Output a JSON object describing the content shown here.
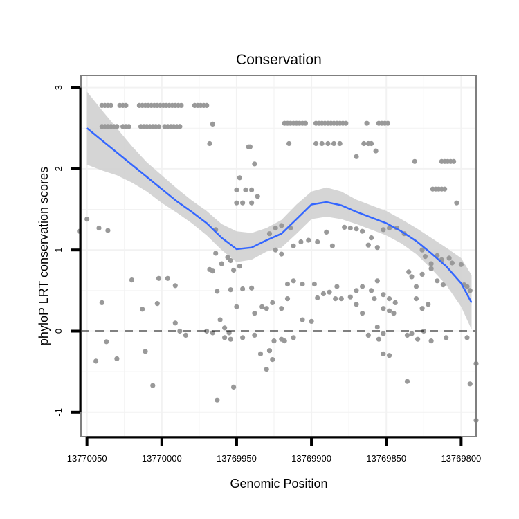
{
  "chart_data": {
    "type": "scatter",
    "title": "Conservation",
    "xlabel": "Genomic Position",
    "ylabel": "phyloP LRT conservation scores",
    "x_reversed": true,
    "xlim": [
      13770054,
      13769790
    ],
    "ylim": [
      -1.3,
      3.15
    ],
    "x_ticks": [
      13770050,
      13770000,
      13769950,
      13769900,
      13769850,
      13769800
    ],
    "x_tick_labels": [
      "13770050",
      "13770000",
      "13769950",
      "13769900",
      "13769850",
      "13769800"
    ],
    "y_ticks": [
      -1,
      0,
      1,
      2,
      3
    ],
    "y_tick_labels": [
      "-1",
      "0",
      "1",
      "2",
      "3"
    ],
    "grid": true,
    "reference_line": {
      "y": 0,
      "style": "dashed"
    },
    "colors": {
      "points": "#999999",
      "smooth": "#3366ff",
      "band": "#d0d0d0",
      "frame": "#7f7f7f",
      "grid": "#f2f2f2"
    },
    "points": [
      [
        13770040,
        2.78
      ],
      [
        13770038,
        2.78
      ],
      [
        13770036,
        2.78
      ],
      [
        13770034,
        2.78
      ],
      [
        13770028,
        2.78
      ],
      [
        13770026,
        2.78
      ],
      [
        13770024,
        2.78
      ],
      [
        13770015,
        2.78
      ],
      [
        13770013,
        2.78
      ],
      [
        13770011,
        2.78
      ],
      [
        13770009,
        2.78
      ],
      [
        13770007,
        2.78
      ],
      [
        13770005,
        2.78
      ],
      [
        13770003,
        2.78
      ],
      [
        13770001,
        2.78
      ],
      [
        13769999,
        2.78
      ],
      [
        13769997,
        2.78
      ],
      [
        13769995,
        2.78
      ],
      [
        13769993,
        2.78
      ],
      [
        13769991,
        2.78
      ],
      [
        13769989,
        2.78
      ],
      [
        13769987,
        2.78
      ],
      [
        13769978,
        2.78
      ],
      [
        13769976,
        2.78
      ],
      [
        13769974,
        2.78
      ],
      [
        13769972,
        2.78
      ],
      [
        13769970,
        2.78
      ],
      [
        13770040,
        2.52
      ],
      [
        13770038,
        2.52
      ],
      [
        13770036,
        2.52
      ],
      [
        13770034,
        2.52
      ],
      [
        13770032,
        2.52
      ],
      [
        13770030,
        2.52
      ],
      [
        13770026,
        2.52
      ],
      [
        13770024,
        2.52
      ],
      [
        13770022,
        2.52
      ],
      [
        13770014,
        2.52
      ],
      [
        13770012,
        2.52
      ],
      [
        13770010,
        2.52
      ],
      [
        13770008,
        2.52
      ],
      [
        13770006,
        2.52
      ],
      [
        13770004,
        2.52
      ],
      [
        13770002,
        2.52
      ],
      [
        13769998,
        2.52
      ],
      [
        13769996,
        2.52
      ],
      [
        13769994,
        2.52
      ],
      [
        13769992,
        2.52
      ],
      [
        13769990,
        2.52
      ],
      [
        13769988,
        2.52
      ],
      [
        13769988,
        2.52
      ],
      [
        13769918,
        2.56
      ],
      [
        13769916,
        2.56
      ],
      [
        13769914,
        2.56
      ],
      [
        13769912,
        2.56
      ],
      [
        13769910,
        2.56
      ],
      [
        13769908,
        2.56
      ],
      [
        13769906,
        2.56
      ],
      [
        13769904,
        2.56
      ],
      [
        13769897,
        2.56
      ],
      [
        13769895,
        2.56
      ],
      [
        13769893,
        2.56
      ],
      [
        13769891,
        2.56
      ],
      [
        13769889,
        2.56
      ],
      [
        13769887,
        2.56
      ],
      [
        13769885,
        2.56
      ],
      [
        13769883,
        2.56
      ],
      [
        13769881,
        2.56
      ],
      [
        13769879,
        2.56
      ],
      [
        13769877,
        2.56
      ],
      [
        13769863,
        2.56
      ],
      [
        13769855,
        2.56
      ],
      [
        13769853,
        2.56
      ],
      [
        13769851,
        2.56
      ],
      [
        13769849,
        2.56
      ],
      [
        13769966,
        2.55
      ],
      [
        13769968,
        2.31
      ],
      [
        13769915,
        2.31
      ],
      [
        13769897,
        2.31
      ],
      [
        13769893,
        2.31
      ],
      [
        13769889,
        2.31
      ],
      [
        13769885,
        2.31
      ],
      [
        13769881,
        2.31
      ],
      [
        13769865,
        2.31
      ],
      [
        13769862,
        2.31
      ],
      [
        13769860,
        2.31
      ],
      [
        13769857,
        2.22
      ],
      [
        13769870,
        2.15
      ],
      [
        13769942,
        2.27
      ],
      [
        13769941,
        2.27
      ],
      [
        13769938,
        2.06
      ],
      [
        13769831,
        2.09
      ],
      [
        13769813,
        2.09
      ],
      [
        13769811,
        2.09
      ],
      [
        13769809,
        2.09
      ],
      [
        13769807,
        2.09
      ],
      [
        13769805,
        2.09
      ],
      [
        13769819,
        1.75
      ],
      [
        13769817,
        1.75
      ],
      [
        13769815,
        1.75
      ],
      [
        13769813,
        1.75
      ],
      [
        13769811,
        1.75
      ],
      [
        13769803,
        1.58
      ],
      [
        13769948,
        1.89
      ],
      [
        13769950,
        1.74
      ],
      [
        13769940,
        1.74
      ],
      [
        13769944,
        1.74
      ],
      [
        13769936,
        1.66
      ],
      [
        13769950,
        1.58
      ],
      [
        13769946,
        1.58
      ],
      [
        13769940,
        1.58
      ],
      [
        13770055,
        1.23
      ],
      [
        13770050,
        1.38
      ],
      [
        13770042,
        1.27
      ],
      [
        13770036,
        1.24
      ],
      [
        13769964,
        1.25
      ],
      [
        13769928,
        1.2
      ],
      [
        13769924,
        1.27
      ],
      [
        13769920,
        1.3
      ],
      [
        13769914,
        1.27
      ],
      [
        13769902,
        1.12
      ],
      [
        13769896,
        1.1
      ],
      [
        13769890,
        1.22
      ],
      [
        13769886,
        1.05
      ],
      [
        13769878,
        1.28
      ],
      [
        13769874,
        1.27
      ],
      [
        13769870,
        1.26
      ],
      [
        13769866,
        1.23
      ],
      [
        13769862,
        1.06
      ],
      [
        13769860,
        1.15
      ],
      [
        13769856,
        1.03
      ],
      [
        13769852,
        1.25
      ],
      [
        13769848,
        1.27
      ],
      [
        13769843,
        1.27
      ],
      [
        13769838,
        1.2
      ],
      [
        13769964,
        0.96
      ],
      [
        13769960,
        0.83
      ],
      [
        13769956,
        0.91
      ],
      [
        13769954,
        0.87
      ],
      [
        13769952,
        0.75
      ],
      [
        13769948,
        0.8
      ],
      [
        13769968,
        0.76
      ],
      [
        13769966,
        0.74
      ],
      [
        13769924,
        1.0
      ],
      [
        13769920,
        0.95
      ],
      [
        13769912,
        1.05
      ],
      [
        13769907,
        1.1
      ],
      [
        13769826,
        1.0
      ],
      [
        13769824,
        0.92
      ],
      [
        13769820,
        0.83
      ],
      [
        13769816,
        0.93
      ],
      [
        13769813,
        0.88
      ],
      [
        13769808,
        0.9
      ],
      [
        13769806,
        0.84
      ],
      [
        13769800,
        0.82
      ],
      [
        13769835,
        0.73
      ],
      [
        13769833,
        0.67
      ],
      [
        13769830,
        0.55
      ],
      [
        13769826,
        0.7
      ],
      [
        13769820,
        0.77
      ],
      [
        13769816,
        0.62
      ],
      [
        13769812,
        0.57
      ],
      [
        13769798,
        0.57
      ],
      [
        13769796,
        0.55
      ],
      [
        13769794,
        0.5
      ],
      [
        13770020,
        0.63
      ],
      [
        13770002,
        0.65
      ],
      [
        13769996,
        0.65
      ],
      [
        13769991,
        0.56
      ],
      [
        13769954,
        0.51
      ],
      [
        13769946,
        0.52
      ],
      [
        13769940,
        0.53
      ],
      [
        13769916,
        0.58
      ],
      [
        13769912,
        0.62
      ],
      [
        13769906,
        0.58
      ],
      [
        13769898,
        0.58
      ],
      [
        13769883,
        0.55
      ],
      [
        13769870,
        0.5
      ],
      [
        13769866,
        0.55
      ],
      [
        13769860,
        0.5
      ],
      [
        13769856,
        0.62
      ],
      [
        13769852,
        0.45
      ],
      [
        13769848,
        0.4
      ],
      [
        13769844,
        0.35
      ],
      [
        13770040,
        0.35
      ],
      [
        13770013,
        0.27
      ],
      [
        13770003,
        0.34
      ],
      [
        13769963,
        0.49
      ],
      [
        13769961,
        0.14
      ],
      [
        13769933,
        0.3
      ],
      [
        13769930,
        0.28
      ],
      [
        13769926,
        0.35
      ],
      [
        13769920,
        0.28
      ],
      [
        13769916,
        0.4
      ],
      [
        13769896,
        0.41
      ],
      [
        13769892,
        0.46
      ],
      [
        13769888,
        0.48
      ],
      [
        13769884,
        0.4
      ],
      [
        13769880,
        0.4
      ],
      [
        13769874,
        0.42
      ],
      [
        13769870,
        0.33
      ],
      [
        13769866,
        0.22
      ],
      [
        13769858,
        0.4
      ],
      [
        13769852,
        0.28
      ],
      [
        13769848,
        0.25
      ],
      [
        13769845,
        0.22
      ],
      [
        13769830,
        0.4
      ],
      [
        13769826,
        0.28
      ],
      [
        13769822,
        0.33
      ],
      [
        13769906,
        0.14
      ],
      [
        13769900,
        0.12
      ],
      [
        13769950,
        0.3
      ],
      [
        13769938,
        0.22
      ],
      [
        13769991,
        0.1
      ],
      [
        13769988,
        0.0
      ],
      [
        13769984,
        -0.05
      ],
      [
        13769958,
        0.04
      ],
      [
        13769955,
        -0.02
      ],
      [
        13769970,
        0.0
      ],
      [
        13769966,
        -0.02
      ],
      [
        13769856,
        0.05
      ],
      [
        13769852,
        -0.03
      ],
      [
        13769836,
        -0.05
      ],
      [
        13769833,
        -0.03
      ],
      [
        13769829,
        -0.1
      ],
      [
        13769825,
        0.0
      ],
      [
        13769820,
        -0.12
      ],
      [
        13770037,
        -0.13
      ],
      [
        13770044,
        -0.37
      ],
      [
        13770030,
        -0.34
      ],
      [
        13770011,
        -0.25
      ],
      [
        13769958,
        -0.08
      ],
      [
        13769954,
        -0.1
      ],
      [
        13769946,
        -0.08
      ],
      [
        13769938,
        -0.05
      ],
      [
        13769934,
        -0.28
      ],
      [
        13769928,
        -0.24
      ],
      [
        13769925,
        -0.12
      ],
      [
        13769920,
        -0.1
      ],
      [
        13769918,
        -0.12
      ],
      [
        13769912,
        -0.08
      ],
      [
        13769862,
        -0.05
      ],
      [
        13769855,
        -0.1
      ],
      [
        13769852,
        -0.28
      ],
      [
        13769848,
        -0.3
      ],
      [
        13769810,
        -0.08
      ],
      [
        13769796,
        -0.08
      ],
      [
        13769790,
        -0.4
      ],
      [
        13769930,
        -0.47
      ],
      [
        13769926,
        -0.35
      ],
      [
        13769794,
        -0.65
      ],
      [
        13770006,
        -0.67
      ],
      [
        13769952,
        -0.69
      ],
      [
        13769963,
        -0.85
      ],
      [
        13769836,
        -0.62
      ],
      [
        13769790,
        -1.1
      ]
    ],
    "smooth": {
      "x": [
        13770050,
        13770040,
        13770030,
        13770020,
        13770010,
        13770000,
        13769990,
        13769980,
        13769970,
        13769960,
        13769950,
        13769940,
        13769930,
        13769920,
        13769910,
        13769900,
        13769890,
        13769880,
        13769870,
        13769860,
        13769850,
        13769840,
        13769830,
        13769820,
        13769810,
        13769800,
        13769793
      ],
      "y": [
        2.5,
        2.35,
        2.2,
        2.05,
        1.9,
        1.75,
        1.6,
        1.47,
        1.33,
        1.15,
        1.01,
        1.03,
        1.12,
        1.2,
        1.38,
        1.56,
        1.59,
        1.55,
        1.47,
        1.4,
        1.33,
        1.23,
        1.11,
        0.96,
        0.8,
        0.59,
        0.35
      ],
      "lower": [
        2.05,
        1.98,
        1.92,
        1.83,
        1.72,
        1.58,
        1.46,
        1.33,
        1.18,
        1.0,
        0.85,
        0.88,
        0.98,
        1.03,
        1.2,
        1.38,
        1.41,
        1.38,
        1.32,
        1.25,
        1.18,
        1.08,
        0.95,
        0.77,
        0.57,
        0.3,
        0.02
      ],
      "upper": [
        2.95,
        2.72,
        2.5,
        2.28,
        2.08,
        1.92,
        1.76,
        1.61,
        1.48,
        1.32,
        1.23,
        1.21,
        1.27,
        1.37,
        1.56,
        1.72,
        1.77,
        1.72,
        1.62,
        1.55,
        1.48,
        1.38,
        1.27,
        1.15,
        1.03,
        0.9,
        0.69
      ]
    }
  }
}
